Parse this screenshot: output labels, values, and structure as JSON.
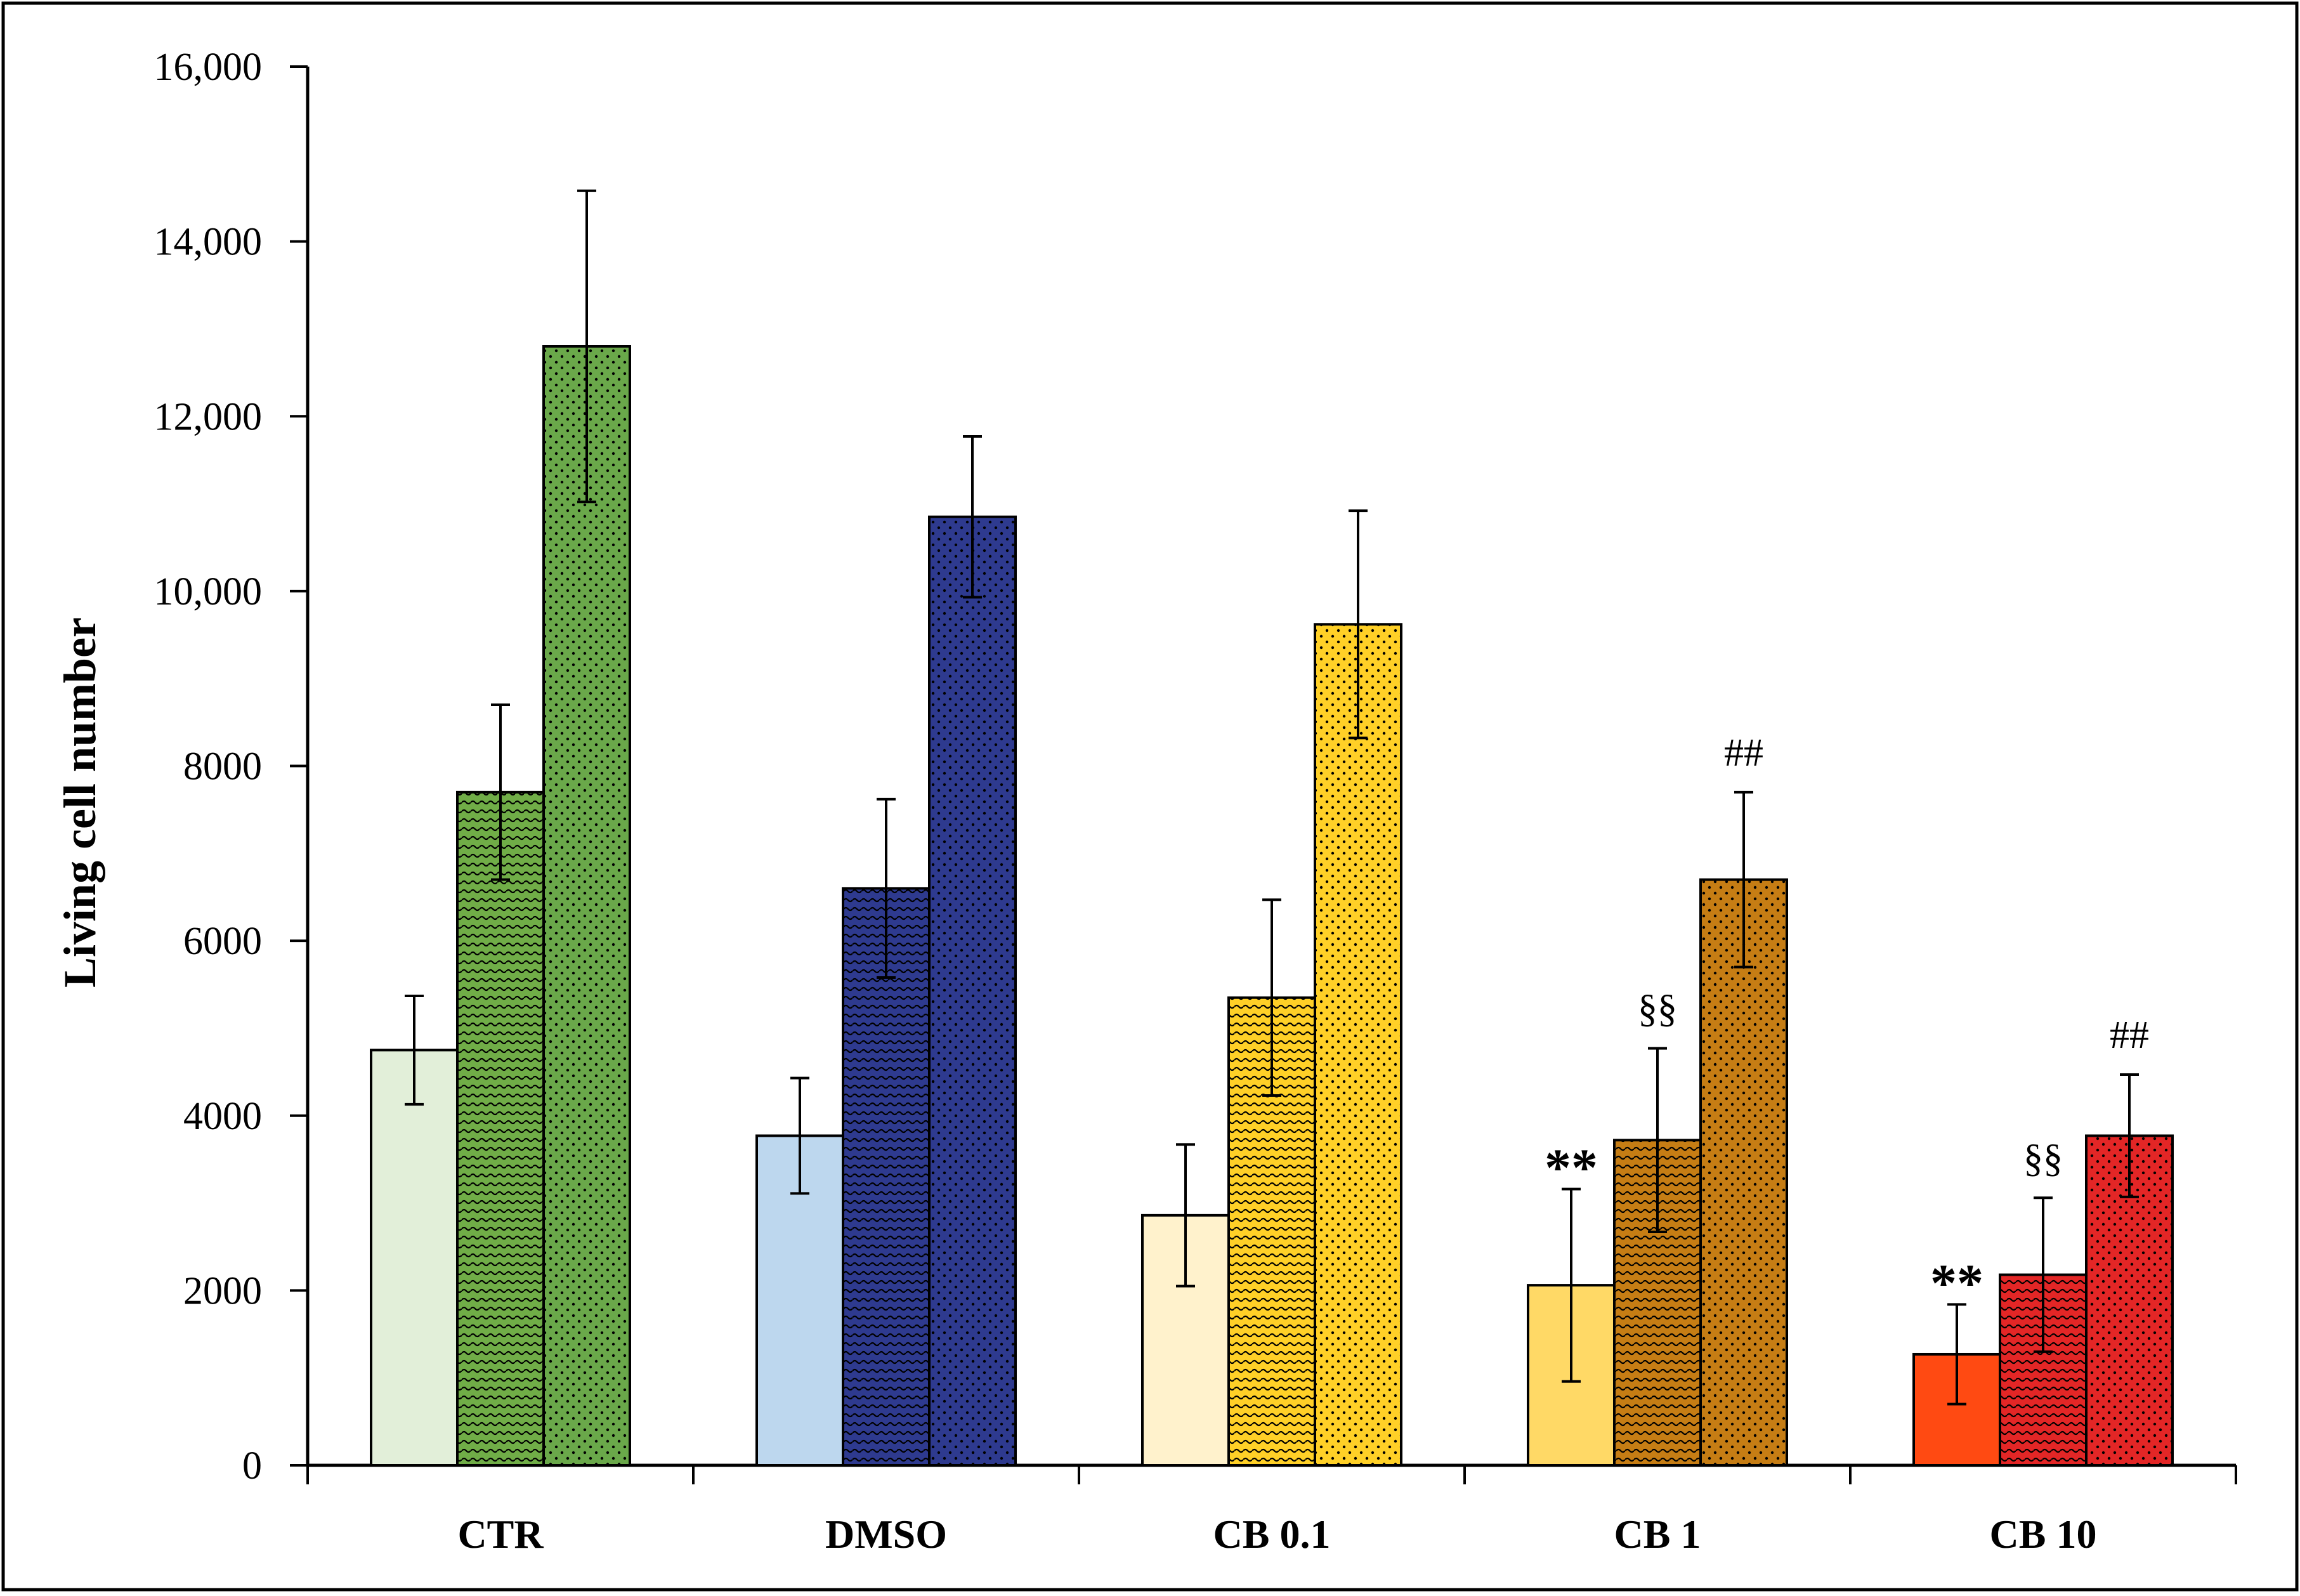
{
  "chart_data": {
    "type": "bar",
    "title": "",
    "xlabel": "",
    "ylabel": "Living cell number",
    "ylim": [
      0,
      16000
    ],
    "yticks": [
      0,
      2000,
      4000,
      6000,
      8000,
      10000,
      12000,
      14000,
      16000
    ],
    "ytick_labels": [
      "0",
      "2000",
      "4000",
      "6000",
      "8000",
      "10,000",
      "12,000",
      "14,000",
      "16,000"
    ],
    "grid": false,
    "legend": "none",
    "categories": [
      "CTR",
      "DMSO",
      "CB 0.1",
      "CB 1",
      "CB 10"
    ],
    "series": [
      {
        "name": "bar 1 (plain)",
        "pattern": "solid",
        "values": [
          4750,
          3770,
          2860,
          2060,
          1270
        ],
        "errors": [
          620,
          660,
          810,
          1100,
          570
        ]
      },
      {
        "name": "bar 2 (wave pattern)",
        "pattern": "wave",
        "values": [
          7700,
          6600,
          5350,
          3720,
          2180
        ],
        "errors": [
          1000,
          1020,
          1120,
          1050,
          880
        ]
      },
      {
        "name": "bar 3 (dotted pattern)",
        "pattern": "dots",
        "values": [
          12800,
          10850,
          9620,
          6700,
          3770
        ],
        "errors": [
          1780,
          920,
          1300,
          1000,
          700
        ]
      }
    ],
    "colors": [
      [
        "#e2efd9",
        "#70ad47",
        "#6aa84a"
      ],
      [
        "#bdd7ee",
        "#2e3a8f",
        "#2e3a8f"
      ],
      [
        "#fff2cc",
        "#ffd027",
        "#ffd027"
      ],
      [
        "#ffd966",
        "#c67d14",
        "#c67d14"
      ],
      [
        "#ff4a12",
        "#e32626",
        "#e32626"
      ]
    ],
    "annotations": [
      {
        "category": 3,
        "series": 0,
        "text": "**",
        "style": "star"
      },
      {
        "category": 3,
        "series": 1,
        "text": "§§",
        "style": "sym"
      },
      {
        "category": 3,
        "series": 2,
        "text": "##",
        "style": "sym"
      },
      {
        "category": 4,
        "series": 0,
        "text": "**",
        "style": "star"
      },
      {
        "category": 4,
        "series": 1,
        "text": "§§",
        "style": "sym"
      },
      {
        "category": 4,
        "series": 2,
        "text": "##",
        "style": "sym"
      }
    ]
  }
}
